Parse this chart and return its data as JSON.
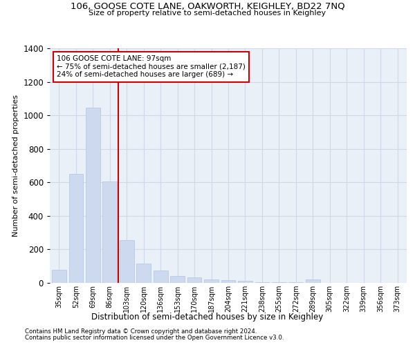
{
  "title": "106, GOOSE COTE LANE, OAKWORTH, KEIGHLEY, BD22 7NQ",
  "subtitle": "Size of property relative to semi-detached houses in Keighley",
  "xlabel": "Distribution of semi-detached houses by size in Keighley",
  "ylabel": "Number of semi-detached properties",
  "categories": [
    "35sqm",
    "52sqm",
    "69sqm",
    "86sqm",
    "103sqm",
    "120sqm",
    "136sqm",
    "153sqm",
    "170sqm",
    "187sqm",
    "204sqm",
    "221sqm",
    "238sqm",
    "255sqm",
    "272sqm",
    "289sqm",
    "305sqm",
    "322sqm",
    "339sqm",
    "356sqm",
    "373sqm"
  ],
  "values": [
    80,
    650,
    1045,
    605,
    255,
    115,
    75,
    40,
    32,
    20,
    18,
    14,
    5,
    5,
    5,
    20,
    0,
    0,
    0,
    0,
    0
  ],
  "bar_color": "#ccd9ee",
  "bar_edge_color": "#b0c4de",
  "vline_x_index": 4.0,
  "annotation_title": "106 GOOSE COTE LANE: 97sqm",
  "annotation_line1": "← 75% of semi-detached houses are smaller (2,187)",
  "annotation_line2": "24% of semi-detached houses are larger (689) →",
  "vline_color": "#cc0000",
  "annotation_box_color": "#ffffff",
  "annotation_box_edge": "#cc0000",
  "grid_color": "#d0d8e8",
  "bg_color": "#eaf0f8",
  "ylim": [
    0,
    1400
  ],
  "footer1": "Contains HM Land Registry data © Crown copyright and database right 2024.",
  "footer2": "Contains public sector information licensed under the Open Government Licence v3.0."
}
